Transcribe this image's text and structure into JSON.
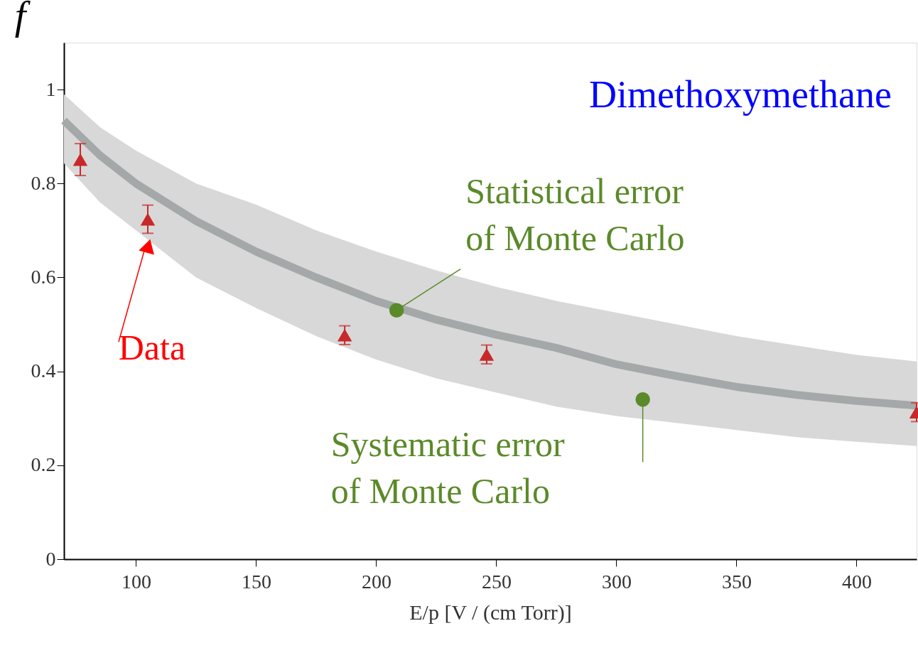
{
  "chart_data": {
    "type": "line",
    "xlabel": "E/p [V / (cm Torr)]",
    "ylabel": "f",
    "xlim": [
      70,
      425
    ],
    "xticks": [
      100,
      150,
      200,
      250,
      300,
      350,
      400
    ],
    "ylim": [
      0,
      1.1
    ],
    "yticks": [
      0,
      0.2,
      0.4,
      0.6,
      0.8,
      1
    ],
    "grid": false,
    "series": [
      {
        "color": "#a4a8a9",
        "x": [
          70,
          85,
          100,
          125,
          150,
          175,
          200,
          225,
          250,
          275,
          300,
          325,
          350,
          375,
          400,
          425
        ],
        "values": [
          0.934,
          0.86,
          0.8,
          0.72,
          0.655,
          0.6,
          0.55,
          0.51,
          0.478,
          0.45,
          0.415,
          0.39,
          0.367,
          0.35,
          0.337,
          0.327
        ],
        "lower": [
          0.843,
          0.76,
          0.7,
          0.6,
          0.535,
          0.475,
          0.425,
          0.385,
          0.355,
          0.325,
          0.305,
          0.29,
          0.275,
          0.26,
          0.25,
          0.241
        ],
        "upper": [
          0.99,
          0.92,
          0.87,
          0.8,
          0.755,
          0.7,
          0.655,
          0.615,
          0.58,
          0.55,
          0.525,
          0.5,
          0.475,
          0.455,
          0.435,
          0.421
        ],
        "marker": "none"
      },
      {
        "type": "scatter",
        "color": "#c8282a",
        "marker": "triangle",
        "x": [
          76.8,
          104.9,
          186.9,
          246,
          425
        ],
        "values": [
          0.851,
          0.724,
          0.477,
          0.436,
          0.313
        ],
        "errors": [
          0.034,
          0.03,
          0.02,
          0.02,
          0.02
        ]
      }
    ],
    "annotations": [
      "Dimethoxymethane",
      {
        "text": "Data",
        "x": 104,
        "y": 0.667
      },
      {
        "text": "Statistical error\nof Monte Carlo",
        "x": 208.5,
        "y": 0.53
      },
      {
        "text": "Systematic error\nof Monte Carlo",
        "x": 311,
        "y": 0.34
      }
    ]
  }
}
